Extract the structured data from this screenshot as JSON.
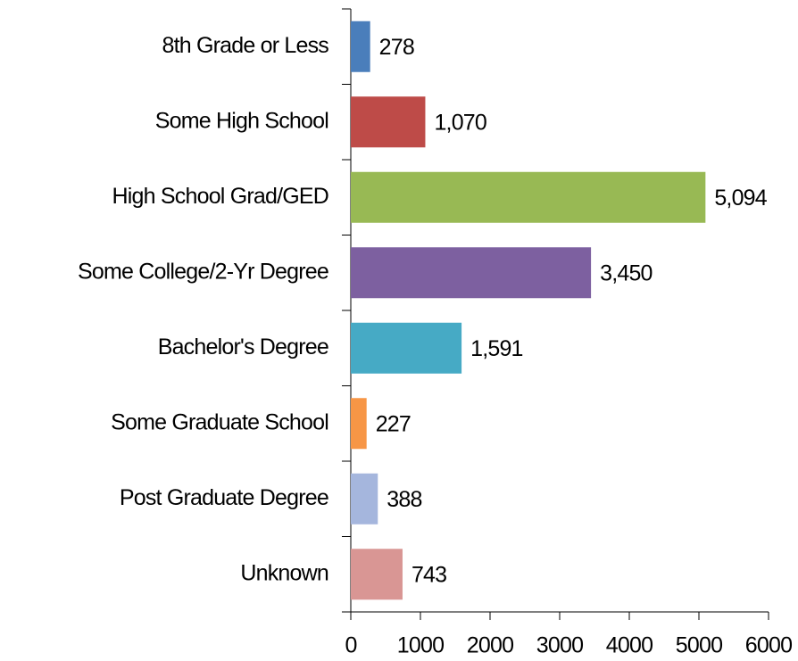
{
  "chart_data": {
    "type": "bar",
    "orientation": "horizontal",
    "categories": [
      "8th Grade or Less",
      "Some High School",
      "High School Grad/GED",
      "Some College/2-Yr Degree",
      "Bachelor's Degree",
      "Some Graduate School",
      "Post Graduate Degree",
      "Unknown"
    ],
    "values": [
      278,
      1070,
      5094,
      3450,
      1591,
      227,
      388,
      743
    ],
    "value_labels": [
      "278",
      "1,070",
      "5,094",
      "3,450",
      "1,591",
      "227",
      "388",
      "743"
    ],
    "colors": [
      "#4a7ebb",
      "#be4b48",
      "#98b954",
      "#7d60a0",
      "#46aac5",
      "#f79646",
      "#a5b6dd",
      "#d99694"
    ],
    "xlim": [
      0,
      6000
    ],
    "xticks": [
      0,
      1000,
      2000,
      3000,
      4000,
      5000,
      6000
    ],
    "grid": false
  }
}
